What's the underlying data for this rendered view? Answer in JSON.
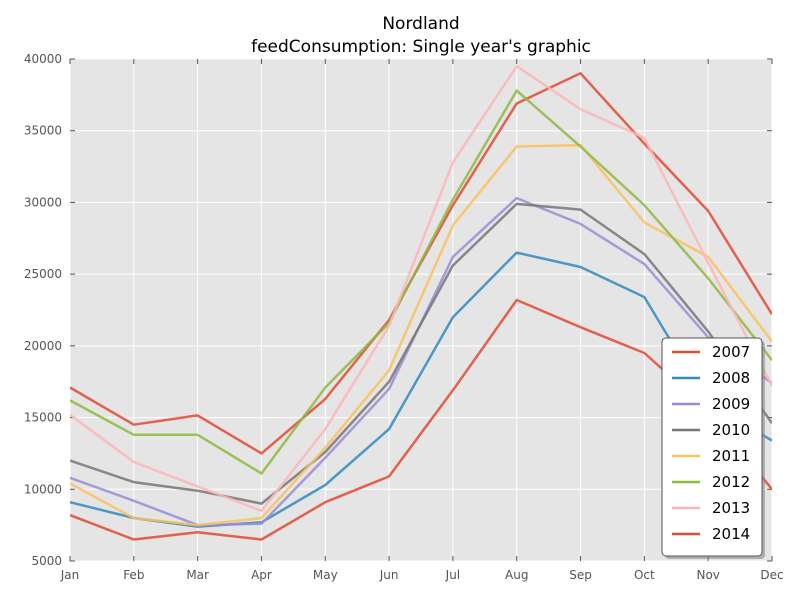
{
  "chart_data": {
    "type": "line",
    "title": "Nordland",
    "subtitle": "feedConsumption: Single year's graphic",
    "xlabel": "",
    "ylabel": "",
    "categories": [
      "Jan",
      "Feb",
      "Mar",
      "Apr",
      "May",
      "Jun",
      "Jul",
      "Aug",
      "Sep",
      "Oct",
      "Nov",
      "Dec"
    ],
    "ylim": [
      5000,
      40000
    ],
    "yticks": [
      5000,
      10000,
      15000,
      20000,
      25000,
      30000,
      35000,
      40000
    ],
    "grid": true,
    "legend_position": "lower-right",
    "series": [
      {
        "name": "2007",
        "color": "#e24a33",
        "values": [
          17100,
          14500,
          15150,
          12500,
          16300,
          21800,
          29800,
          36900,
          39000,
          34100,
          29400,
          22200
        ]
      },
      {
        "name": "2008",
        "color": "#348abd",
        "values": [
          9100,
          8000,
          7400,
          7700,
          10300,
          14200,
          22000,
          26500,
          25500,
          23400,
          16000,
          13400
        ]
      },
      {
        "name": "2009",
        "color": "#988ed5",
        "values": [
          10800,
          9200,
          7500,
          7600,
          12200,
          17000,
          26200,
          30300,
          28500,
          25700,
          20600,
          17400
        ]
      },
      {
        "name": "2010",
        "color": "#777777",
        "values": [
          12000,
          10500,
          9900,
          9000,
          12600,
          17500,
          25600,
          29900,
          29500,
          26400,
          21000,
          14600
        ]
      },
      {
        "name": "2011",
        "color": "#fbc15e",
        "values": [
          10400,
          8000,
          7500,
          8000,
          12900,
          18300,
          28400,
          33900,
          34000,
          28600,
          26200,
          20300
        ]
      },
      {
        "name": "2012",
        "color": "#8eba42",
        "values": [
          16200,
          13800,
          13800,
          11100,
          17100,
          21600,
          30200,
          37800,
          33900,
          29800,
          24700,
          19000
        ]
      },
      {
        "name": "2013",
        "color": "#ffb5b8",
        "values": [
          15200,
          11900,
          10200,
          8500,
          14200,
          21400,
          32800,
          39500,
          36500,
          34500,
          25800,
          17200
        ]
      },
      {
        "name": "2014",
        "color": "#e24a33",
        "values": [
          8200,
          6500,
          7000,
          6500,
          9100,
          10900,
          16900,
          23200,
          21300,
          19500,
          15500,
          10000
        ]
      }
    ]
  }
}
